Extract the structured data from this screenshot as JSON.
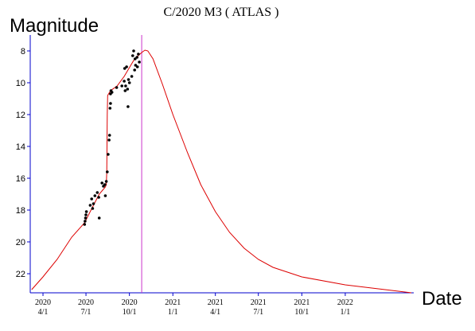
{
  "chart_data": {
    "type": "line",
    "title": "C/2020 M3 ( ATLAS )",
    "ylabel": "Magnitude",
    "xlabel": "Date",
    "y_axis_inverted": true,
    "ylim": [
      23.2,
      7.0
    ],
    "xlim": [
      "2020-03-05",
      "2022-05-26"
    ],
    "y_ticks": [
      "8",
      "10",
      "12",
      "14",
      "16",
      "18",
      "20",
      "22"
    ],
    "x_ticks": [
      {
        "year": "2020",
        "md": "4/1",
        "date": "2020-04-01"
      },
      {
        "year": "2020",
        "md": "7/1",
        "date": "2020-07-01"
      },
      {
        "year": "2020",
        "md": "10/1",
        "date": "2020-10-01"
      },
      {
        "year": "2021",
        "md": "1/1",
        "date": "2021-01-01"
      },
      {
        "year": "2021",
        "md": "4/1",
        "date": "2021-04-01"
      },
      {
        "year": "2021",
        "md": "7/1",
        "date": "2021-07-01"
      },
      {
        "year": "2021",
        "md": "10/1",
        "date": "2021-10-01"
      },
      {
        "year": "2022",
        "md": "1/1",
        "date": "2022-01-01"
      }
    ],
    "marker_line": {
      "date": "2020-10-27",
      "color": "#cc33cc"
    },
    "curve_color": "#dd0000",
    "axis_color": "#0000cc",
    "series": [
      {
        "type": "line",
        "points": [
          [
            "2020-03-08",
            23.0
          ],
          [
            "2020-04-01",
            22.2
          ],
          [
            "2020-05-01",
            21.1
          ],
          [
            "2020-06-01",
            19.7
          ],
          [
            "2020-06-28",
            18.8
          ],
          [
            "2020-07-15",
            17.8
          ],
          [
            "2020-07-29",
            17.0
          ],
          [
            "2020-08-11",
            16.55
          ],
          [
            "2020-08-13",
            16.4
          ],
          [
            "2020-08-14",
            15.6
          ],
          [
            "2020-08-15",
            12.0
          ],
          [
            "2020-08-16",
            10.8
          ],
          [
            "2020-08-22",
            10.5
          ],
          [
            "2020-09-05",
            10.2
          ],
          [
            "2020-09-20",
            9.6
          ],
          [
            "2020-10-02",
            9.0
          ],
          [
            "2020-10-12",
            8.5
          ],
          [
            "2020-10-27",
            8.1
          ],
          [
            "2020-11-03",
            7.95
          ],
          [
            "2020-11-09",
            8.0
          ],
          [
            "2020-11-20",
            8.5
          ],
          [
            "2020-12-10",
            10.1
          ],
          [
            "2021-01-01",
            12.0
          ],
          [
            "2021-02-01",
            14.4
          ],
          [
            "2021-03-01",
            16.4
          ],
          [
            "2021-04-01",
            18.1
          ],
          [
            "2021-05-01",
            19.4
          ],
          [
            "2021-06-01",
            20.4
          ],
          [
            "2021-07-01",
            21.1
          ],
          [
            "2021-08-01",
            21.6
          ],
          [
            "2021-10-01",
            22.2
          ],
          [
            "2022-01-01",
            22.7
          ],
          [
            "2022-05-21",
            23.2
          ]
        ]
      },
      {
        "type": "scatter",
        "points": [
          [
            "2020-06-28",
            18.9
          ],
          [
            "2020-06-29",
            18.7
          ],
          [
            "2020-06-30",
            18.5
          ],
          [
            "2020-07-01",
            18.3
          ],
          [
            "2020-07-02",
            18.1
          ],
          [
            "2020-07-10",
            17.7
          ],
          [
            "2020-07-13",
            17.3
          ],
          [
            "2020-07-15",
            17.9
          ],
          [
            "2020-07-17",
            17.6
          ],
          [
            "2020-07-20",
            17.1
          ],
          [
            "2020-07-25",
            16.9
          ],
          [
            "2020-07-28",
            17.2
          ],
          [
            "2020-07-29",
            18.5
          ],
          [
            "2020-08-04",
            16.3
          ],
          [
            "2020-08-07",
            16.5
          ],
          [
            "2020-08-10",
            16.4
          ],
          [
            "2020-08-11",
            17.1
          ],
          [
            "2020-08-13",
            16.2
          ],
          [
            "2020-08-15",
            15.6
          ],
          [
            "2020-08-17",
            14.5
          ],
          [
            "2020-08-19",
            13.6
          ],
          [
            "2020-08-20",
            13.3
          ],
          [
            "2020-08-21",
            11.6
          ],
          [
            "2020-08-22",
            11.3
          ],
          [
            "2020-08-22",
            10.7
          ],
          [
            "2020-08-23",
            10.5
          ],
          [
            "2020-08-25",
            10.6
          ],
          [
            "2020-09-04",
            10.3
          ],
          [
            "2020-09-15",
            10.2
          ],
          [
            "2020-09-20",
            9.9
          ],
          [
            "2020-09-21",
            9.1
          ],
          [
            "2020-09-22",
            10.5
          ],
          [
            "2020-09-23",
            10.2
          ],
          [
            "2020-09-25",
            9.0
          ],
          [
            "2020-09-27",
            10.4
          ],
          [
            "2020-09-28",
            11.5
          ],
          [
            "2020-09-29",
            9.8
          ],
          [
            "2020-10-01",
            10.0
          ],
          [
            "2020-10-06",
            9.6
          ],
          [
            "2020-10-08",
            8.3
          ],
          [
            "2020-10-10",
            8.0
          ],
          [
            "2020-10-12",
            9.2
          ],
          [
            "2020-10-13",
            8.5
          ],
          [
            "2020-10-14",
            8.9
          ],
          [
            "2020-10-17",
            8.4
          ],
          [
            "2020-10-18",
            9.0
          ],
          [
            "2020-10-20",
            8.2
          ],
          [
            "2020-10-22",
            8.7
          ]
        ]
      }
    ]
  }
}
